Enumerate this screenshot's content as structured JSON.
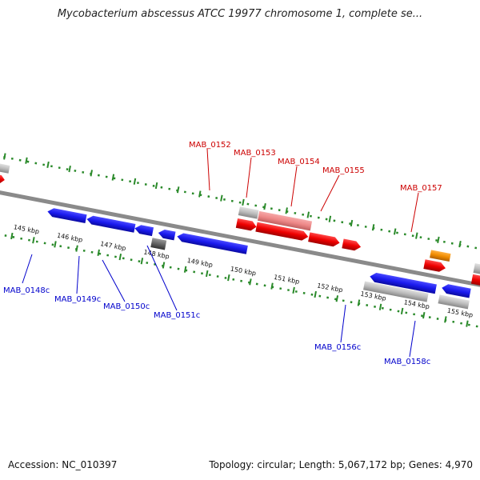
{
  "title": "Mycobacterium abscessus ATCC 19977 chromosome 1, complete se...",
  "footer": {
    "accession": "Accession: NC_010397",
    "summary": "Topology: circular; Length: 5,067,172 bp; Genes: 4,970"
  },
  "scale_ticks": [
    "145 kbp",
    "146 kbp",
    "147 kbp",
    "148 kbp",
    "149 kbp",
    "150 kbp",
    "151 kbp",
    "152 kbp",
    "153 kbp",
    "154 kbp",
    "155 kbp"
  ],
  "forward_genes": [
    "MAB_0152",
    "MAB_0153",
    "MAB_0154",
    "MAB_0155",
    "MAB_0157"
  ],
  "reverse_genes": [
    "MAB_0148c",
    "MAB_0149c",
    "MAB_0150c",
    "MAB_0151c",
    "MAB_0156c",
    "MAB_0158c"
  ],
  "colors": {
    "forward_cds": "#ee0000",
    "reverse_cds": "#1a1aee",
    "pseudo_light": "#bbbbbb",
    "pseudo_dark": "#666666",
    "highlight": "#ee8888",
    "rna": "#f08c00",
    "backbone": "#8a8a8a",
    "gc_dots": "#2a8a2a"
  }
}
